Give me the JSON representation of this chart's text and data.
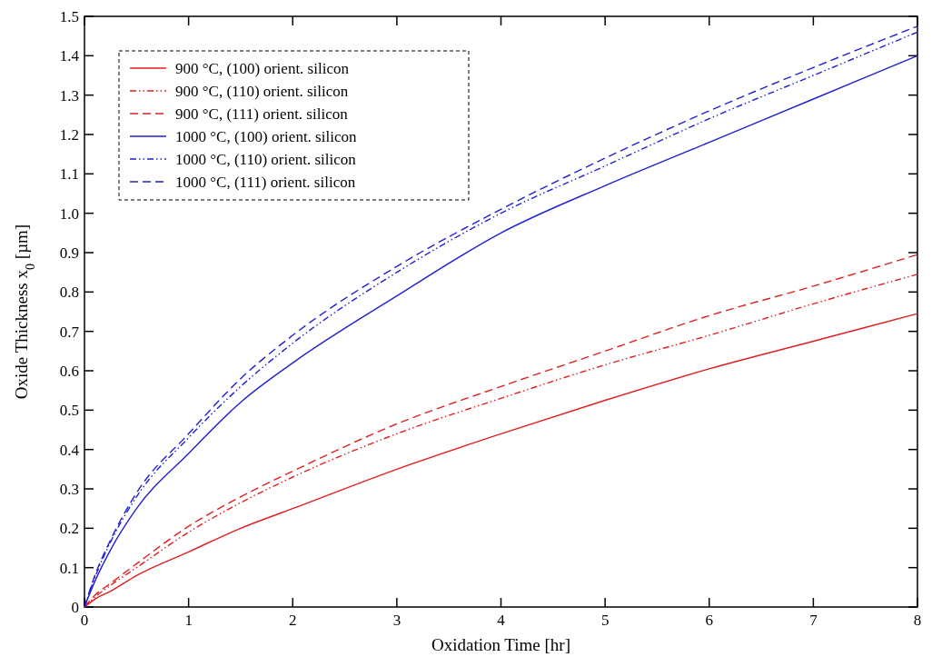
{
  "chart_data": {
    "type": "line",
    "xlabel": "Oxidation Time [hr]",
    "ylabel": "Oxide Thickness x$_{0}$ [µm]",
    "x": [
      0,
      0.1,
      0.25,
      0.5,
      1,
      1.5,
      2,
      3,
      4,
      5,
      6,
      7,
      8
    ],
    "series": [
      {
        "name": "900 °C, (100) orient. silicon",
        "color": "#e02020",
        "line_style": "solid",
        "values": [
          0,
          0.02,
          0.04,
          0.08,
          0.14,
          0.2,
          0.25,
          0.35,
          0.44,
          0.525,
          0.605,
          0.675,
          0.745
        ]
      },
      {
        "name": "900 °C, (110) orient. silicon",
        "color": "#e02020",
        "line_style": "dotted",
        "values": [
          0,
          0.025,
          0.055,
          0.1,
          0.19,
          0.265,
          0.33,
          0.44,
          0.53,
          0.615,
          0.69,
          0.77,
          0.845
        ]
      },
      {
        "name": "900 °C, (111) orient. silicon",
        "color": "#e02020",
        "line_style": "dashed",
        "values": [
          0,
          0.03,
          0.06,
          0.11,
          0.205,
          0.28,
          0.345,
          0.465,
          0.56,
          0.65,
          0.74,
          0.815,
          0.895
        ]
      },
      {
        "name": "1000 °C, (100) orient. silicon",
        "color": "#2020d0",
        "line_style": "solid",
        "values": [
          0,
          0.065,
          0.145,
          0.25,
          0.39,
          0.52,
          0.62,
          0.79,
          0.95,
          1.07,
          1.18,
          1.29,
          1.4
        ]
      },
      {
        "name": "1000 °C, (110) orient. silicon",
        "color": "#2020d0",
        "line_style": "dotted",
        "values": [
          0,
          0.075,
          0.165,
          0.28,
          0.43,
          0.56,
          0.67,
          0.85,
          1.0,
          1.12,
          1.24,
          1.35,
          1.46
        ]
      },
      {
        "name": "1000 °C, (111) orient. silicon",
        "color": "#2020d0",
        "line_style": "dashed",
        "values": [
          0,
          0.08,
          0.17,
          0.29,
          0.44,
          0.58,
          0.69,
          0.865,
          1.01,
          1.14,
          1.26,
          1.37,
          1.475
        ]
      }
    ],
    "xlim": [
      0,
      8
    ],
    "xticks": [
      0,
      1,
      2,
      3,
      4,
      5,
      6,
      7,
      8
    ],
    "ylim": [
      0,
      1.5
    ],
    "yticks": [
      0,
      {
        "value": 0.1,
        "label": "0.1"
      },
      {
        "value": 0.2,
        "label": "0.2"
      },
      {
        "value": 0.3,
        "label": "0.3"
      },
      {
        "value": 0.4,
        "label": "0.4"
      },
      {
        "value": 0.5,
        "label": "0.5"
      },
      {
        "value": 0.6,
        "label": "0.6"
      },
      {
        "value": 0.7,
        "label": "0.7"
      },
      {
        "value": 0.8,
        "label": "0.8"
      },
      {
        "value": 0.9,
        "label": "0.9"
      },
      {
        "value": 1.0,
        "label": "1.0"
      },
      {
        "value": 1.1,
        "label": "1.1"
      },
      {
        "value": 1.2,
        "label": "1.2"
      },
      {
        "value": 1.3,
        "label": "1.3"
      },
      {
        "value": 1.4,
        "label": "1.4"
      },
      {
        "value": 1.5,
        "label": "1.5"
      }
    ],
    "grid": false,
    "legend": "top left",
    "marker": "none"
  }
}
